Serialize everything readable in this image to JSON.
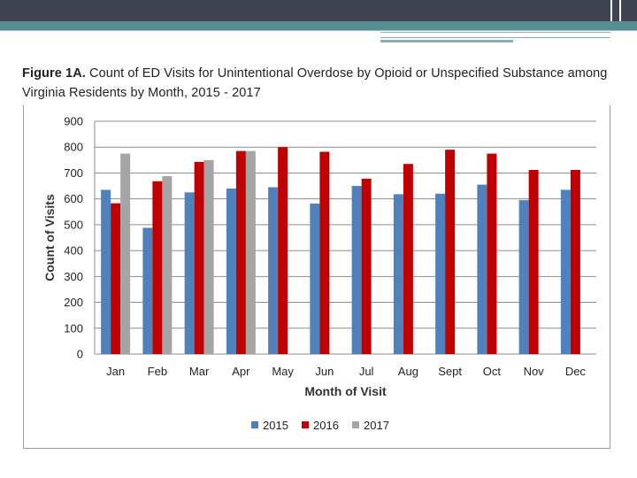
{
  "slide": {
    "figure_label": "Figure 1A.",
    "figure_title": "Count of ED Visits for Unintentional Overdose by Opioid or Unspecified Substance among Virginia Residents by Month, 2015 - 2017"
  },
  "chart_data": {
    "type": "bar",
    "title": "Figure 1A. Count of ED Visits for Unintentional Overdose by Opioid or Unspecified Substance among Virginia Residents by Month, 2015 - 2017",
    "xlabel": "Month of Visit",
    "ylabel": "Count of Visits",
    "ylim": [
      0,
      900
    ],
    "yticks": [
      0,
      100,
      200,
      300,
      400,
      500,
      600,
      700,
      800,
      900
    ],
    "grid": true,
    "legend_position": "bottom",
    "categories": [
      "Jan",
      "Feb",
      "Mar",
      "Apr",
      "May",
      "Jun",
      "Jul",
      "Aug",
      "Sept",
      "Oct",
      "Nov",
      "Dec"
    ],
    "series": [
      {
        "name": "2015",
        "color": "#4f81bd",
        "values": [
          635,
          488,
          625,
          640,
          645,
          582,
          650,
          618,
          620,
          655,
          595,
          635
        ]
      },
      {
        "name": "2016",
        "color": "#c00000",
        "values": [
          583,
          668,
          743,
          785,
          800,
          782,
          678,
          735,
          790,
          775,
          712,
          712
        ]
      },
      {
        "name": "2017",
        "color": "#a5a5a5",
        "values": [
          775,
          688,
          750,
          785,
          null,
          null,
          null,
          null,
          null,
          null,
          null,
          null
        ]
      }
    ]
  }
}
